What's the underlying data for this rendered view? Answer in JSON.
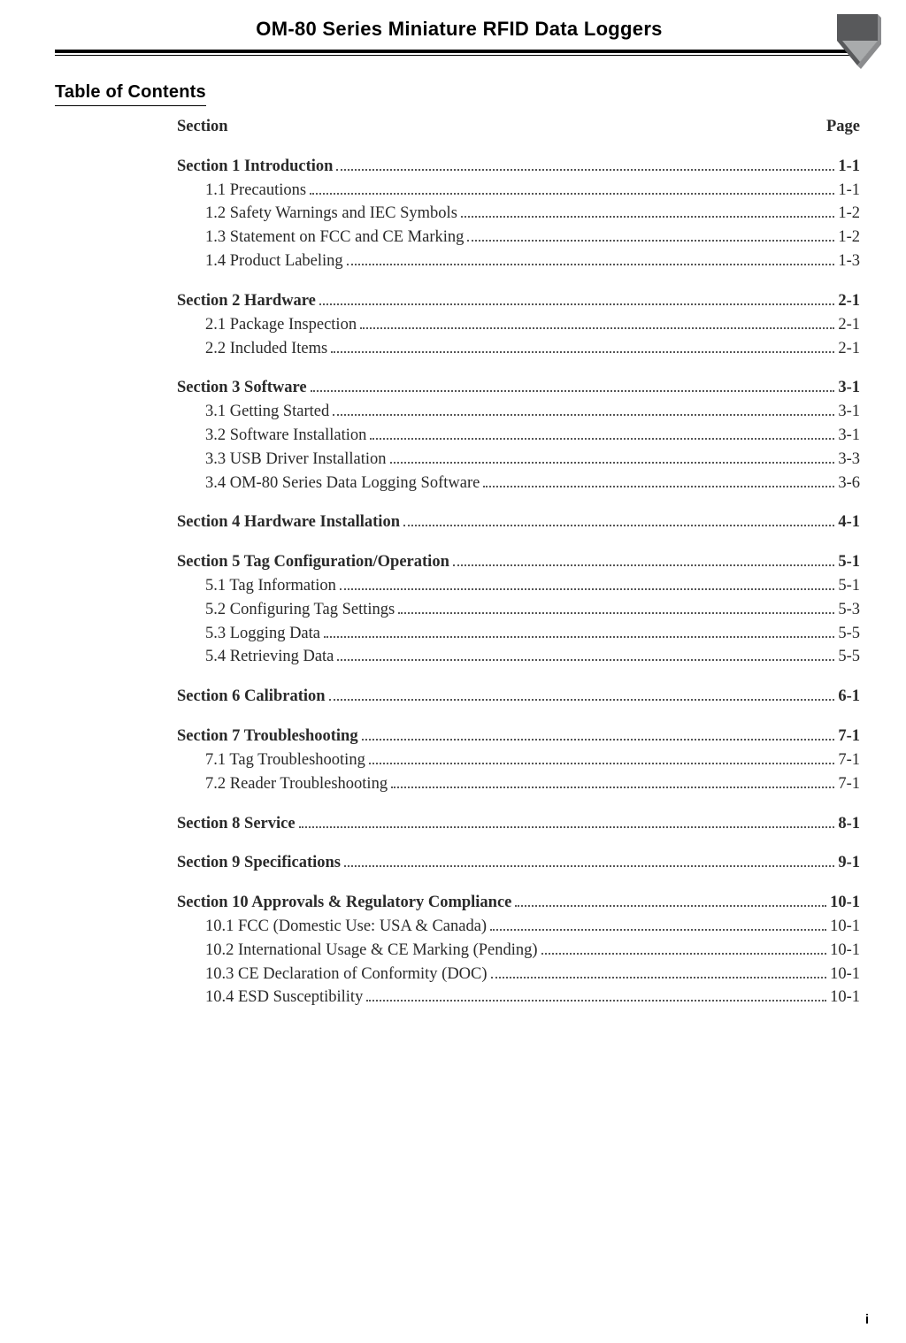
{
  "header": {
    "title": "OM-80 Series Miniature RFID Data Loggers"
  },
  "toc": {
    "heading": "Table of Contents",
    "column_section": "Section",
    "column_page": "Page",
    "sections": [
      {
        "title": "Section 1 Introduction",
        "page": "1-1",
        "items": [
          {
            "label": "1.1 Precautions",
            "page": "1-1"
          },
          {
            "label": "1.2 Safety Warnings and IEC Symbols",
            "page": "1-2"
          },
          {
            "label": "1.3 Statement on FCC and CE Marking",
            "page": "1-2"
          },
          {
            "label": "1.4 Product Labeling",
            "page": "1-3"
          }
        ]
      },
      {
        "title": "Section 2 Hardware",
        "page": "2-1",
        "items": [
          {
            "label": "2.1 Package Inspection",
            "page": "2-1"
          },
          {
            "label": "2.2 Included Items",
            "page": "2-1"
          }
        ]
      },
      {
        "title": "Section 3 Software",
        "page": "3-1",
        "items": [
          {
            "label": "3.1 Getting Started",
            "page": "3-1"
          },
          {
            "label": "3.2 Software Installation",
            "page": "3-1"
          },
          {
            "label": "3.3 USB Driver Installation",
            "page": "3-3"
          },
          {
            "label": "3.4 OM-80 Series Data Logging Software",
            "page": "3-6"
          }
        ]
      },
      {
        "title": "Section 4 Hardware Installation",
        "page": "4-1",
        "items": []
      },
      {
        "title": "Section 5 Tag Configuration/Operation",
        "page": "5-1",
        "items": [
          {
            "label": "5.1 Tag Information",
            "page": "5-1"
          },
          {
            "label": "5.2 Configuring Tag Settings",
            "page": "5-3"
          },
          {
            "label": "5.3 Logging Data",
            "page": "5-5"
          },
          {
            "label": "5.4 Retrieving Data",
            "page": "5-5"
          }
        ]
      },
      {
        "title": "Section 6 Calibration",
        "page": "6-1",
        "items": []
      },
      {
        "title": "Section 7 Troubleshooting",
        "page": "7-1",
        "items": [
          {
            "label": "7.1 Tag Troubleshooting",
            "page": "7-1"
          },
          {
            "label": "7.2 Reader Troubleshooting",
            "page": "7-1"
          }
        ]
      },
      {
        "title": "Section 8 Service",
        "page": "8-1",
        "items": []
      },
      {
        "title": "Section 9 Specifications",
        "page": "9-1",
        "items": []
      },
      {
        "title": "Section 10 Approvals & Regulatory Compliance",
        "page": "10-1",
        "items": [
          {
            "label": "10.1 FCC (Domestic Use: USA & Canada)",
            "page": "10-1"
          },
          {
            "label": "10.2 International Usage & CE Marking (Pending)",
            "page": "10-1"
          },
          {
            "label": "10.3 CE Declaration of Conformity (DOC)",
            "page": "10-1"
          },
          {
            "label": "10.4 ESD Susceptibility",
            "page": "10-1"
          }
        ]
      }
    ]
  },
  "footer": {
    "page_number": "i"
  }
}
